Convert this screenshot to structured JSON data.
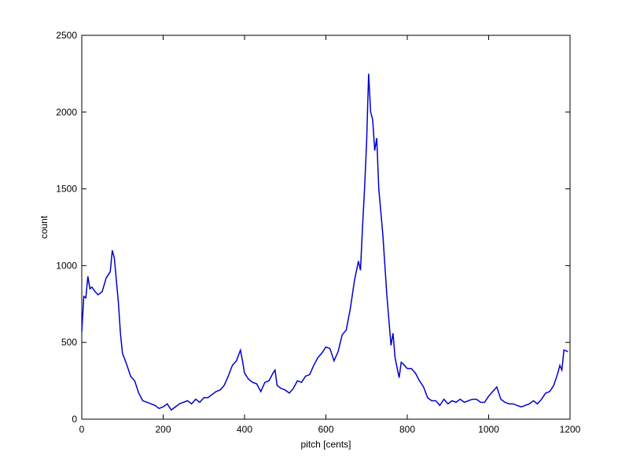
{
  "chart_data": {
    "type": "line",
    "xlabel": "pitch [cents]",
    "ylabel": "count",
    "x": [
      0,
      5,
      10,
      15,
      20,
      25,
      30,
      40,
      50,
      60,
      70,
      75,
      80,
      90,
      95,
      100,
      110,
      120,
      130,
      140,
      150,
      160,
      170,
      180,
      190,
      200,
      210,
      220,
      230,
      240,
      250,
      260,
      270,
      280,
      290,
      300,
      310,
      320,
      330,
      340,
      350,
      360,
      370,
      380,
      390,
      395,
      400,
      410,
      420,
      430,
      440,
      450,
      460,
      470,
      475,
      480,
      490,
      500,
      510,
      520,
      530,
      540,
      550,
      560,
      570,
      580,
      590,
      600,
      610,
      620,
      630,
      640,
      650,
      660,
      670,
      680,
      685,
      690,
      695,
      700,
      705,
      710,
      715,
      720,
      725,
      730,
      740,
      750,
      760,
      765,
      770,
      780,
      785,
      790,
      800,
      810,
      820,
      830,
      840,
      850,
      860,
      870,
      880,
      890,
      900,
      910,
      920,
      930,
      940,
      950,
      960,
      970,
      980,
      990,
      1000,
      1010,
      1020,
      1030,
      1040,
      1050,
      1060,
      1070,
      1080,
      1090,
      1100,
      1110,
      1120,
      1130,
      1140,
      1150,
      1160,
      1170,
      1175,
      1180,
      1185,
      1195
    ],
    "series": [
      {
        "name": "count",
        "color": "#0000cc",
        "values": [
          570,
          800,
          790,
          930,
          850,
          860,
          840,
          810,
          830,
          920,
          960,
          1100,
          1050,
          760,
          560,
          430,
          360,
          280,
          250,
          170,
          120,
          110,
          100,
          90,
          70,
          80,
          100,
          60,
          80,
          100,
          110,
          120,
          100,
          130,
          110,
          140,
          140,
          160,
          180,
          190,
          220,
          280,
          350,
          380,
          450,
          380,
          300,
          260,
          240,
          230,
          180,
          240,
          250,
          300,
          320,
          220,
          200,
          190,
          170,
          200,
          250,
          240,
          280,
          290,
          350,
          400,
          430,
          470,
          460,
          380,
          440,
          550,
          580,
          720,
          900,
          1030,
          970,
          1250,
          1500,
          1800,
          2250,
          2000,
          1950,
          1750,
          1830,
          1500,
          1200,
          800,
          480,
          560,
          400,
          270,
          370,
          360,
          330,
          330,
          300,
          250,
          210,
          140,
          120,
          120,
          90,
          130,
          100,
          120,
          110,
          130,
          110,
          120,
          130,
          130,
          110,
          110,
          150,
          180,
          210,
          130,
          110,
          100,
          100,
          90,
          80,
          90,
          100,
          120,
          100,
          130,
          170,
          180,
          220,
          300,
          350,
          320,
          450,
          440
        ]
      }
    ],
    "xlim": [
      0,
      1200
    ],
    "ylim": [
      0,
      2500
    ],
    "xticks": [
      0,
      200,
      400,
      600,
      800,
      1000,
      1200
    ],
    "yticks": [
      0,
      500,
      1000,
      1500,
      2000,
      2500
    ]
  }
}
